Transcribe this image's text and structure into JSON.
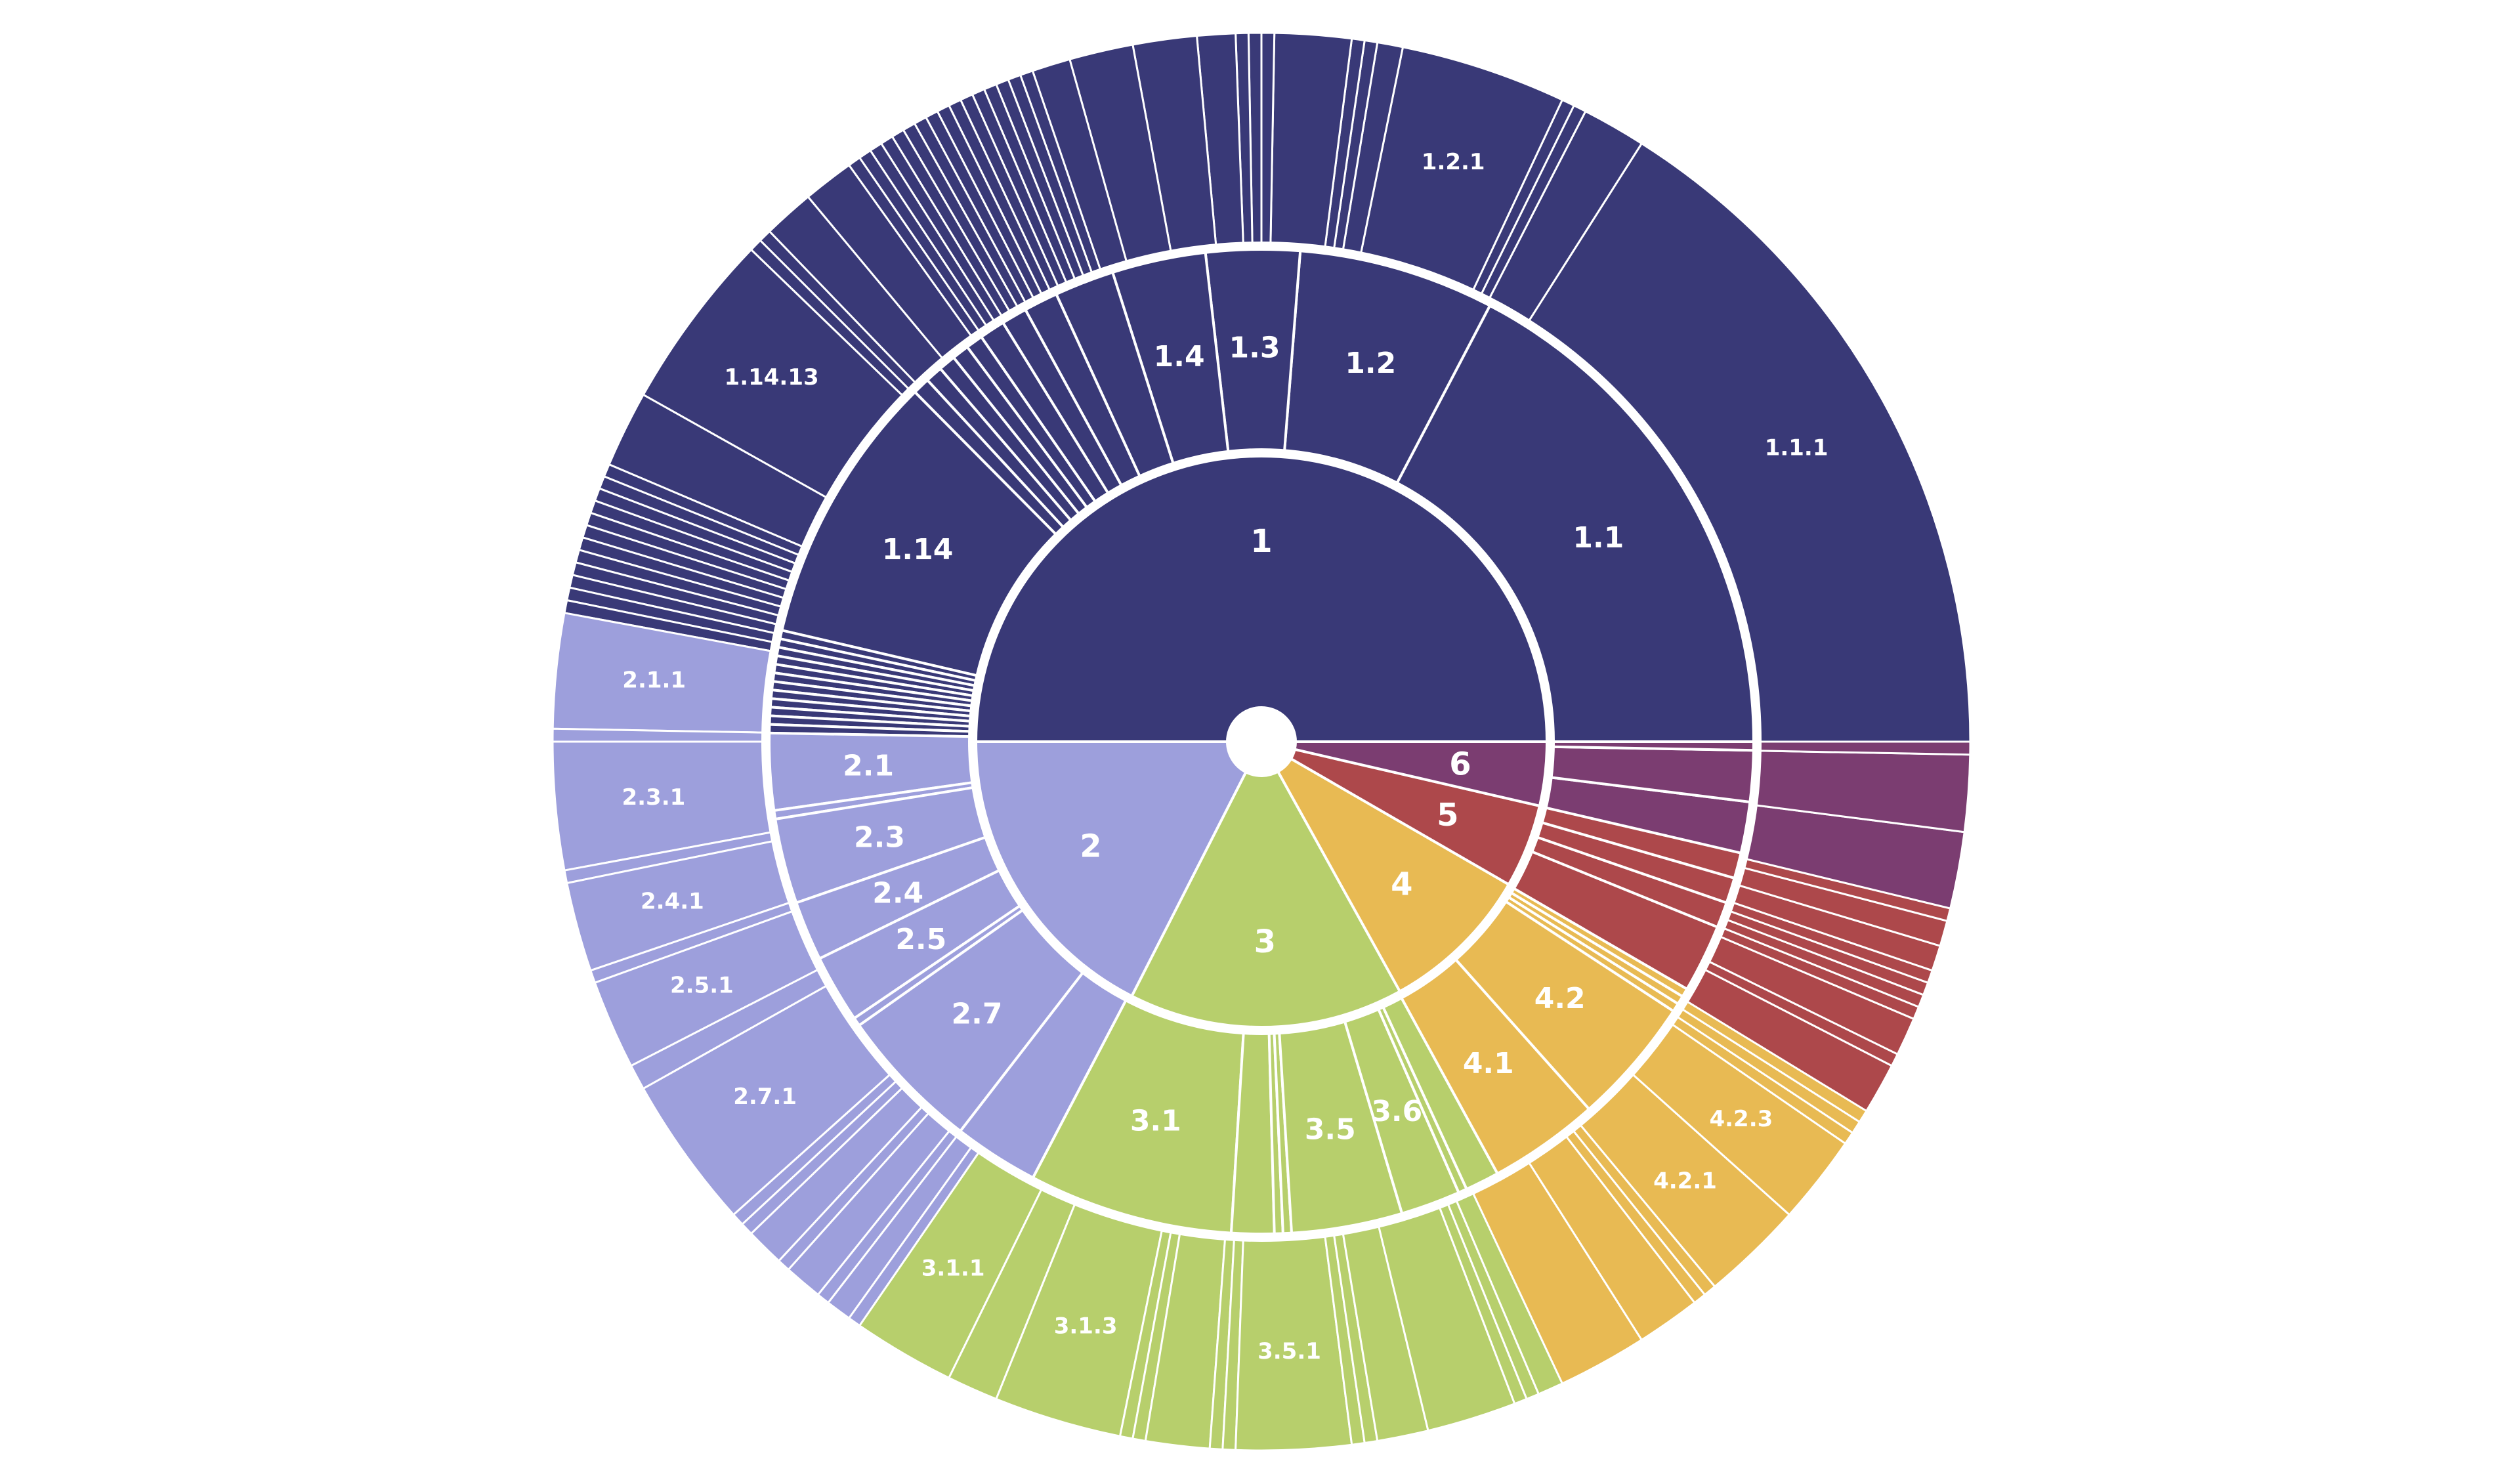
{
  "chart_data": {
    "type": "sunburst",
    "title": "",
    "colors": {
      "1": "#393977",
      "2": "#9d9fdc",
      "3": "#b7cf6c",
      "4": "#e8ba53",
      "5": "#ad484b",
      "6": "#7b3d71",
      "separator": "#ffffff"
    },
    "levels": [
      [
        {
          "label": "1",
          "group": "1",
          "value": 180
        },
        {
          "label": "2",
          "group": "2",
          "value": 63
        },
        {
          "label": "3",
          "group": "3",
          "value": 56
        },
        {
          "label": "4",
          "group": "4",
          "value": 31
        },
        {
          "label": "5",
          "group": "5",
          "value": 17
        },
        {
          "label": "6",
          "group": "6",
          "value": 13
        }
      ],
      [
        {
          "label": "1.1",
          "group": "1",
          "value": 62
        },
        {
          "label": "1.2",
          "group": "1",
          "value": 23
        },
        {
          "label": "1.3",
          "group": "1",
          "value": 11
        },
        {
          "label": "1.4",
          "group": "1",
          "value": 11
        },
        {
          "label": "",
          "group": "1",
          "value": 7
        },
        {
          "label": "",
          "group": "1",
          "value": 4
        },
        {
          "label": "",
          "group": "1",
          "value": 3
        },
        {
          "label": "",
          "group": "1",
          "value": 3
        },
        {
          "label": "",
          "group": "1",
          "value": 2
        },
        {
          "label": "",
          "group": "1",
          "value": 2
        },
        {
          "label": "",
          "group": "1",
          "value": 2
        },
        {
          "label": "",
          "group": "1",
          "value": 2
        },
        {
          "label": "",
          "group": "1",
          "value": 2
        },
        {
          "label": "1.14",
          "group": "1",
          "value": 32
        },
        {
          "label": "",
          "group": "1",
          "value": 1
        },
        {
          "label": "",
          "group": "1",
          "value": 1
        },
        {
          "label": "",
          "group": "1",
          "value": 1
        },
        {
          "label": "",
          "group": "1",
          "value": 1
        },
        {
          "label": "",
          "group": "1",
          "value": 1
        },
        {
          "label": "",
          "group": "1",
          "value": 1
        },
        {
          "label": "",
          "group": "1",
          "value": 1
        },
        {
          "label": "",
          "group": "1",
          "value": 1
        },
        {
          "label": "",
          "group": "1",
          "value": 1
        },
        {
          "label": "",
          "group": "1",
          "value": 1
        },
        {
          "label": "",
          "group": "1",
          "value": 1
        },
        {
          "label": "",
          "group": "1",
          "value": 1
        },
        {
          "label": "2.1",
          "group": "2",
          "value": 9
        },
        {
          "label": "",
          "group": "2",
          "value": 1
        },
        {
          "label": "2.3",
          "group": "2",
          "value": 10
        },
        {
          "label": "2.4",
          "group": "2",
          "value": 7
        },
        {
          "label": "2.5",
          "group": "2",
          "value": 8
        },
        {
          "label": "",
          "group": "2",
          "value": 1
        },
        {
          "label": "2.7",
          "group": "2",
          "value": 17
        },
        {
          "label": "",
          "group": "2",
          "value": 10
        },
        {
          "label": "3.1",
          "group": "3",
          "value": 24
        },
        {
          "label": "",
          "group": "3",
          "value": 5
        },
        {
          "label": "",
          "group": "3",
          "value": 1
        },
        {
          "label": "",
          "group": "3",
          "value": 1
        },
        {
          "label": "3.5",
          "group": "3",
          "value": 13
        },
        {
          "label": "3.6",
          "group": "3",
          "value": 7
        },
        {
          "label": "",
          "group": "3",
          "value": 1
        },
        {
          "label": "",
          "group": "3",
          "value": 4
        },
        {
          "label": "4.1",
          "group": "4",
          "value": 13
        },
        {
          "label": "4.2",
          "group": "4",
          "value": 15
        },
        {
          "label": "",
          "group": "4",
          "value": 1
        },
        {
          "label": "",
          "group": "4",
          "value": 1
        },
        {
          "label": "",
          "group": "4",
          "value": 1
        },
        {
          "label": "",
          "group": "5",
          "value": 8
        },
        {
          "label": "",
          "group": "5",
          "value": 3
        },
        {
          "label": "",
          "group": "5",
          "value": 3
        },
        {
          "label": "",
          "group": "5",
          "value": 3
        },
        {
          "label": "",
          "group": "6",
          "value": 6
        },
        {
          "label": "",
          "group": "6",
          "value": 6
        },
        {
          "label": "",
          "group": "6",
          "value": 1
        }
      ],
      [
        {
          "label": "1.1.1",
          "group": "1",
          "value": 55
        },
        {
          "label": "",
          "group": "1",
          "value": 5
        },
        {
          "label": "",
          "group": "1",
          "value": 1
        },
        {
          "label": "",
          "group": "1",
          "value": 1
        },
        {
          "label": "1.2.1",
          "group": "1",
          "value": 13
        },
        {
          "label": "",
          "group": "1",
          "value": 2
        },
        {
          "label": "",
          "group": "1",
          "value": 1
        },
        {
          "label": "",
          "group": "1",
          "value": 1
        },
        {
          "label": "",
          "group": "1",
          "value": 6
        },
        {
          "label": "",
          "group": "1",
          "value": 1
        },
        {
          "label": "",
          "group": "1",
          "value": 1
        },
        {
          "label": "",
          "group": "1",
          "value": 1
        },
        {
          "label": "",
          "group": "1",
          "value": 3
        },
        {
          "label": "",
          "group": "1",
          "value": 5
        },
        {
          "label": "",
          "group": "1",
          "value": 5
        },
        {
          "label": "",
          "group": "1",
          "value": 3
        },
        {
          "label": "",
          "group": "1",
          "value": 1
        },
        {
          "label": "",
          "group": "1",
          "value": 1
        },
        {
          "label": "",
          "group": "1",
          "value": 1
        },
        {
          "label": "",
          "group": "1",
          "value": 1
        },
        {
          "label": "",
          "group": "1",
          "value": 1
        },
        {
          "label": "",
          "group": "1",
          "value": 1
        },
        {
          "label": "",
          "group": "1",
          "value": 1
        },
        {
          "label": "",
          "group": "1",
          "value": 1
        },
        {
          "label": "",
          "group": "1",
          "value": 1
        },
        {
          "label": "",
          "group": "1",
          "value": 1
        },
        {
          "label": "",
          "group": "1",
          "value": 1
        },
        {
          "label": "",
          "group": "1",
          "value": 1
        },
        {
          "label": "",
          "group": "1",
          "value": 1
        },
        {
          "label": "",
          "group": "1",
          "value": 1
        },
        {
          "label": "",
          "group": "1",
          "value": 1
        },
        {
          "label": "",
          "group": "1",
          "value": 1
        },
        {
          "label": "",
          "group": "1",
          "value": 4
        },
        {
          "label": "",
          "group": "1",
          "value": 4
        },
        {
          "label": "",
          "group": "1",
          "value": 1
        },
        {
          "label": "",
          "group": "1",
          "value": 1
        },
        {
          "label": "1.14.13",
          "group": "1",
          "value": 14
        },
        {
          "label": "",
          "group": "1",
          "value": 6
        },
        {
          "label": "",
          "group": "1",
          "value": 1
        },
        {
          "label": "",
          "group": "1",
          "value": 1
        },
        {
          "label": "",
          "group": "1",
          "value": 1
        },
        {
          "label": "",
          "group": "1",
          "value": 1
        },
        {
          "label": "",
          "group": "1",
          "value": 1
        },
        {
          "label": "",
          "group": "1",
          "value": 1
        },
        {
          "label": "",
          "group": "1",
          "value": 1
        },
        {
          "label": "",
          "group": "1",
          "value": 1
        },
        {
          "label": "",
          "group": "1",
          "value": 1
        },
        {
          "label": "",
          "group": "1",
          "value": 1
        },
        {
          "label": "",
          "group": "1",
          "value": 1
        },
        {
          "label": "",
          "group": "1",
          "value": 1
        },
        {
          "label": "2.1.1",
          "group": "2",
          "value": 9
        },
        {
          "label": "",
          "group": "2",
          "value": 1
        },
        {
          "label": "2.3.1",
          "group": "2",
          "value": 10
        },
        {
          "label": "",
          "group": "2",
          "value": 1
        },
        {
          "label": "2.4.1",
          "group": "2",
          "value": 7
        },
        {
          "label": "",
          "group": "2",
          "value": 1
        },
        {
          "label": "2.5.1",
          "group": "2",
          "value": 7
        },
        {
          "label": "",
          "group": "2",
          "value": 2
        },
        {
          "label": "2.7.1",
          "group": "2",
          "value": 12
        },
        {
          "label": "",
          "group": "2",
          "value": 1
        },
        {
          "label": "",
          "group": "2",
          "value": 1
        },
        {
          "label": "",
          "group": "2",
          "value": 3
        },
        {
          "label": "",
          "group": "2",
          "value": 1
        },
        {
          "label": "",
          "group": "2",
          "value": 3
        },
        {
          "label": "",
          "group": "2",
          "value": 1
        },
        {
          "label": "",
          "group": "2",
          "value": 2
        },
        {
          "label": "",
          "group": "2",
          "value": 1
        },
        {
          "label": "3.1.1",
          "group": "3",
          "value": 8
        },
        {
          "label": "",
          "group": "3",
          "value": 4
        },
        {
          "label": "3.1.3",
          "group": "3",
          "value": 10
        },
        {
          "label": "",
          "group": "3",
          "value": 1
        },
        {
          "label": "",
          "group": "3",
          "value": 1
        },
        {
          "label": "",
          "group": "3",
          "value": 5
        },
        {
          "label": "",
          "group": "3",
          "value": 1
        },
        {
          "label": "",
          "group": "3",
          "value": 1
        },
        {
          "label": "3.5.1",
          "group": "3",
          "value": 9
        },
        {
          "label": "",
          "group": "3",
          "value": 1
        },
        {
          "label": "",
          "group": "3",
          "value": 1
        },
        {
          "label": "",
          "group": "3",
          "value": 4
        },
        {
          "label": "",
          "group": "3",
          "value": 7
        },
        {
          "label": "",
          "group": "3",
          "value": 1
        },
        {
          "label": "",
          "group": "3",
          "value": 1
        },
        {
          "label": "",
          "group": "3",
          "value": 2
        },
        {
          "label": "",
          "group": "4",
          "value": 7
        },
        {
          "label": "",
          "group": "4",
          "value": 5
        },
        {
          "label": "",
          "group": "4",
          "value": 1
        },
        {
          "label": "",
          "group": "4",
          "value": 1
        },
        {
          "label": "4.2.1",
          "group": "4",
          "value": 8
        },
        {
          "label": "4.2.3",
          "group": "4",
          "value": 7
        },
        {
          "label": "",
          "group": "4",
          "value": 1
        },
        {
          "label": "",
          "group": "4",
          "value": 1
        },
        {
          "label": "",
          "group": "4",
          "value": 1
        },
        {
          "label": "",
          "group": "5",
          "value": 4
        },
        {
          "label": "",
          "group": "5",
          "value": 1
        },
        {
          "label": "",
          "group": "5",
          "value": 3
        },
        {
          "label": "",
          "group": "5",
          "value": 1
        },
        {
          "label": "",
          "group": "5",
          "value": 1
        },
        {
          "label": "",
          "group": "5",
          "value": 1
        },
        {
          "label": "",
          "group": "5",
          "value": 1
        },
        {
          "label": "",
          "group": "5",
          "value": 2
        },
        {
          "label": "",
          "group": "5",
          "value": 2
        },
        {
          "label": "",
          "group": "5",
          "value": 1
        },
        {
          "label": "",
          "group": "6",
          "value": 6
        },
        {
          "label": "",
          "group": "6",
          "value": 6
        },
        {
          "label": "",
          "group": "6",
          "value": 1
        }
      ]
    ]
  }
}
